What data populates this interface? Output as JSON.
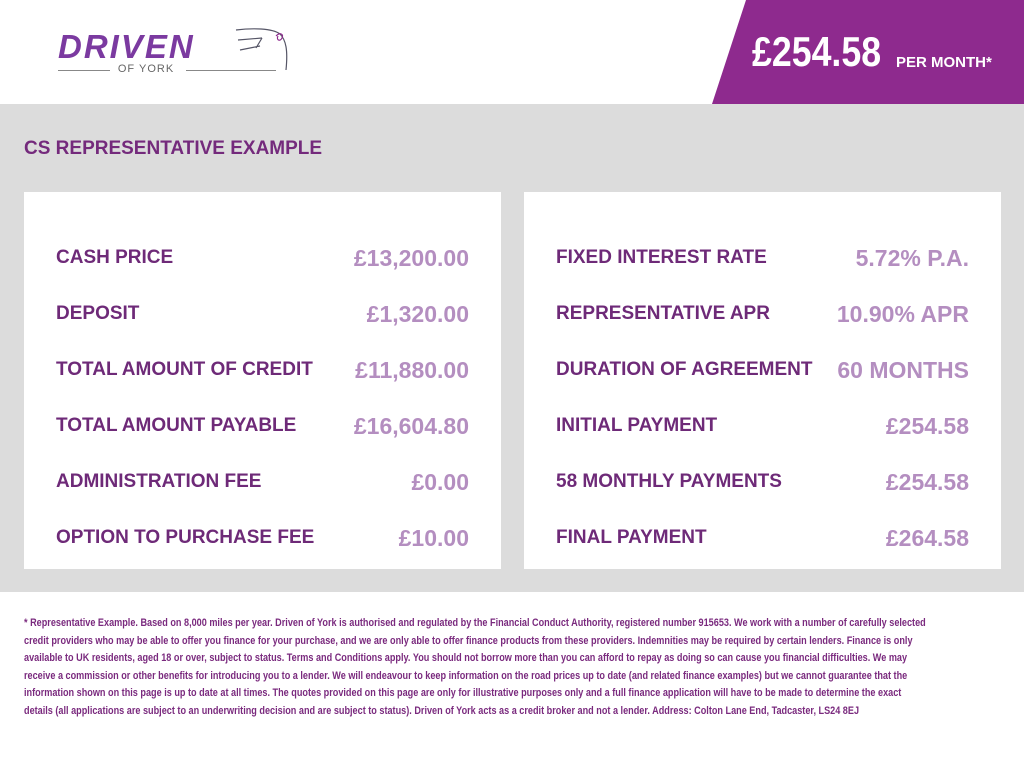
{
  "brand": {
    "name": "DRIVEN",
    "sub": "OF YORK",
    "colors": {
      "primary": "#8e2a8e",
      "label": "#6e2a78",
      "value": "#b48ec0",
      "band": "#dcdcdc"
    }
  },
  "header": {
    "price": "£254.58",
    "per_month": "PER MONTH*"
  },
  "section_title": "CS REPRESENTATIVE EXAMPLE",
  "left_rows": [
    {
      "label": "CASH PRICE",
      "value": "£13,200.00"
    },
    {
      "label": "DEPOSIT",
      "value": "£1,320.00"
    },
    {
      "label": "TOTAL AMOUNT OF CREDIT",
      "value": "£11,880.00"
    },
    {
      "label": "TOTAL AMOUNT PAYABLE",
      "value": "£16,604.80"
    },
    {
      "label": "ADMINISTRATION FEE",
      "value": "£0.00"
    },
    {
      "label": "OPTION TO PURCHASE FEE",
      "value": "£10.00"
    }
  ],
  "right_rows": [
    {
      "label": "FIXED INTEREST RATE",
      "value": "5.72% P.A."
    },
    {
      "label": "REPRESENTATIVE APR",
      "value": "10.90% APR"
    },
    {
      "label": "DURATION OF AGREEMENT",
      "value": "60 MONTHS"
    },
    {
      "label": "INITIAL PAYMENT",
      "value": "£254.58"
    },
    {
      "label": "58 MONTHLY PAYMENTS",
      "value": "£254.58"
    },
    {
      "label": "FINAL PAYMENT",
      "value": "£264.58"
    }
  ],
  "disclaimer": [
    "* Representative Example. Based on 8,000 miles per year. Driven of York is authorised and regulated by the Financial Conduct Authority, registered number 915653. We work with a number of carefully selected",
    "credit providers who may be able to offer you finance for your purchase, and we are only able to offer finance products from these providers. Indemnities may be required by certain lenders. Finance is only",
    "available to UK residents, aged 18 or over, subject to status. Terms and Conditions apply. You should not borrow more than you can afford to repay as doing so can cause you financial difficulties. We may",
    "receive a commission or other benefits for introducing you to a lender. We will endeavour to keep information on the road prices up to date (and related finance examples) but we cannot guarantee that the",
    "information shown on this page is up to date at all times. The quotes provided on this page are only for illustrative purposes only and a full finance application will have to be made to determine the exact",
    "details (all applications are subject to an underwriting decision and are subject to status). Driven of York acts as a credit broker and not a lender. Address: Colton Lane End, Tadcaster, LS24 8EJ"
  ]
}
